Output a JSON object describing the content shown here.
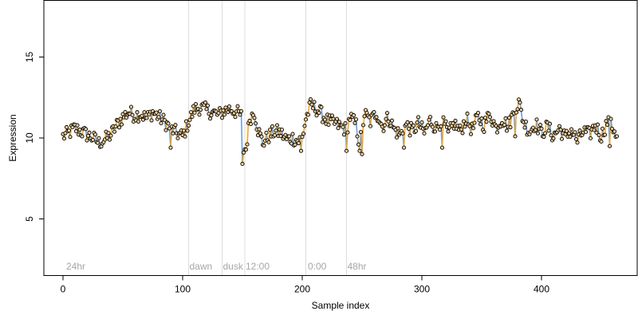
{
  "chart_data": {
    "type": "scatter",
    "title": "",
    "xlabel": "Sample index",
    "ylabel": "Expression",
    "xlim": [
      -16,
      480
    ],
    "ylim": [
      1.5,
      18.5
    ],
    "x_ticks": [
      "0",
      "100",
      "200",
      "300",
      "400"
    ],
    "x_tick_values": [
      0,
      100,
      200,
      300,
      400
    ],
    "y_ticks": [
      "5",
      "10",
      "15"
    ],
    "y_tick_values": [
      5,
      10,
      15
    ],
    "grid": false,
    "legend": null,
    "colors": {
      "up": "#f5a623",
      "down": "#6f9fd8",
      "point_fill": "#f2cf9a",
      "point_stroke": "#000000",
      "vline": "#dcdcdc",
      "annotation": "#a6a6a6"
    },
    "annotations": [
      {
        "label": "24hr",
        "x": 2
      },
      {
        "label": "dawn",
        "x": 105
      },
      {
        "label": "dusk",
        "x": 133
      },
      {
        "label": "12:00",
        "x": 152
      },
      {
        "label": "0:00",
        "x": 204
      },
      {
        "label": "48hr",
        "x": 237
      }
    ],
    "vlines": [
      105,
      133,
      152,
      203,
      237
    ],
    "anchors": [
      [
        0,
        10.1
      ],
      [
        5,
        10.3
      ],
      [
        10,
        10.6
      ],
      [
        15,
        10.4
      ],
      [
        20,
        10.2
      ],
      [
        25,
        10.0
      ],
      [
        30,
        9.7
      ],
      [
        35,
        9.9
      ],
      [
        40,
        10.2
      ],
      [
        45,
        10.8
      ],
      [
        50,
        11.3
      ],
      [
        55,
        11.6
      ],
      [
        60,
        11.4
      ],
      [
        65,
        11.5
      ],
      [
        70,
        11.2
      ],
      [
        75,
        11.6
      ],
      [
        80,
        11.3
      ],
      [
        85,
        11.0
      ],
      [
        90,
        10.6
      ],
      [
        95,
        10.3
      ],
      [
        100,
        10.1
      ],
      [
        105,
        11.0
      ],
      [
        110,
        11.8
      ],
      [
        115,
        11.9
      ],
      [
        120,
        11.7
      ],
      [
        125,
        11.6
      ],
      [
        130,
        11.4
      ],
      [
        135,
        11.7
      ],
      [
        140,
        11.8
      ],
      [
        145,
        11.6
      ],
      [
        150,
        11.3
      ],
      [
        153,
        9.3
      ],
      [
        156,
        11.2
      ],
      [
        160,
        11.6
      ],
      [
        163,
        10.5
      ],
      [
        167,
        9.7
      ],
      [
        172,
        10.1
      ],
      [
        177,
        10.4
      ],
      [
        182,
        10.3
      ],
      [
        187,
        9.9
      ],
      [
        192,
        10.0
      ],
      [
        197,
        9.8
      ],
      [
        200,
        10.0
      ],
      [
        203,
        11.2
      ],
      [
        207,
        12.0
      ],
      [
        212,
        11.8
      ],
      [
        217,
        11.4
      ],
      [
        222,
        11.0
      ],
      [
        227,
        10.9
      ],
      [
        232,
        10.7
      ],
      [
        237,
        10.5
      ],
      [
        240,
        11.3
      ],
      [
        245,
        10.8
      ],
      [
        248,
        9.5
      ],
      [
        252,
        11.5
      ],
      [
        257,
        11.0
      ],
      [
        262,
        11.6
      ],
      [
        267,
        10.7
      ],
      [
        272,
        11.3
      ],
      [
        277,
        10.5
      ],
      [
        282,
        10.2
      ],
      [
        287,
        10.8
      ],
      [
        292,
        10.4
      ],
      [
        297,
        10.9
      ],
      [
        302,
        10.3
      ],
      [
        307,
        11.1
      ],
      [
        312,
        10.6
      ],
      [
        317,
        11.2
      ],
      [
        322,
        10.2
      ],
      [
        327,
        10.9
      ],
      [
        332,
        10.4
      ],
      [
        337,
        11.2
      ],
      [
        342,
        10.5
      ],
      [
        347,
        11.3
      ],
      [
        352,
        10.8
      ],
      [
        357,
        11.5
      ],
      [
        362,
        10.6
      ],
      [
        367,
        11.2
      ],
      [
        372,
        10.7
      ],
      [
        377,
        11.6
      ],
      [
        381,
        12.2
      ],
      [
        385,
        11.0
      ],
      [
        390,
        10.4
      ],
      [
        395,
        10.9
      ],
      [
        400,
        10.3
      ],
      [
        405,
        10.7
      ],
      [
        410,
        10.1
      ],
      [
        415,
        10.6
      ],
      [
        420,
        10.0
      ],
      [
        425,
        10.5
      ],
      [
        430,
        9.8
      ],
      [
        435,
        10.4
      ],
      [
        440,
        10.2
      ],
      [
        445,
        10.8
      ],
      [
        450,
        10.1
      ],
      [
        455,
        11.0
      ],
      [
        460,
        10.6
      ],
      [
        463,
        10.2
      ]
    ]
  }
}
